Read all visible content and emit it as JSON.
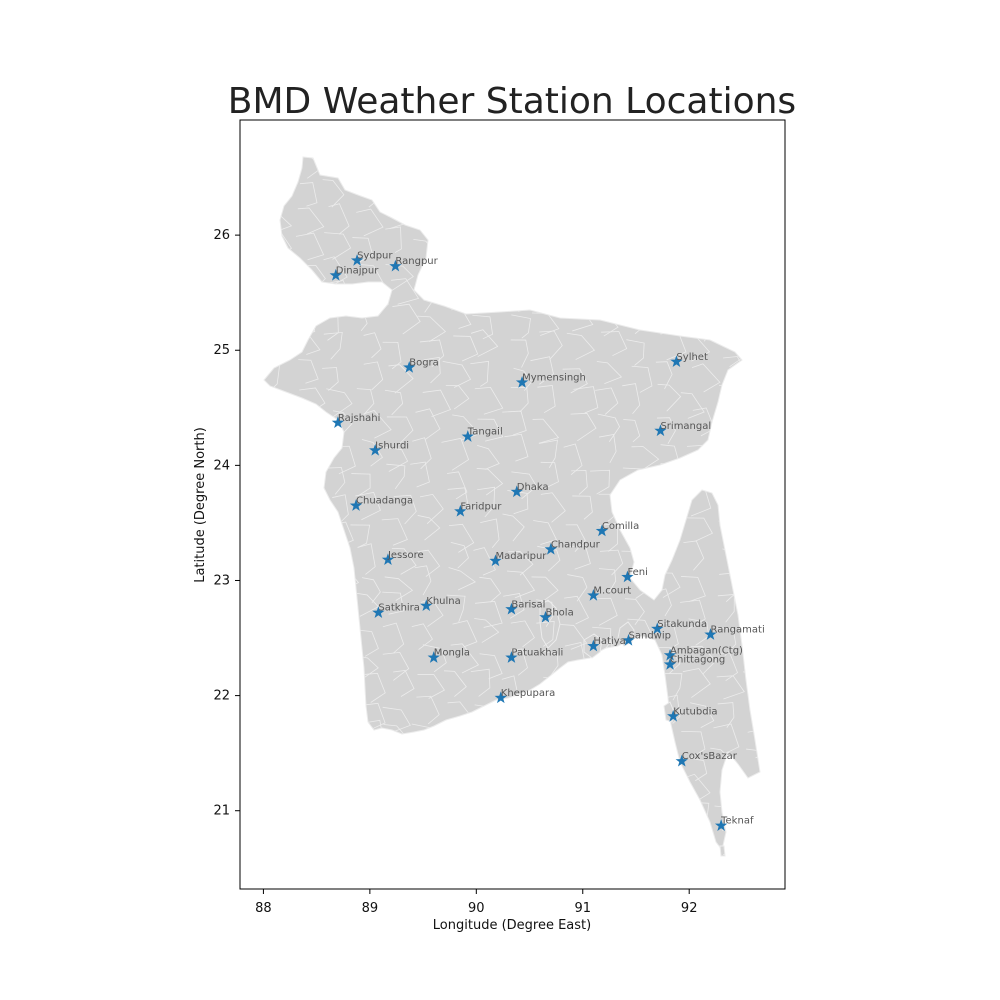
{
  "title": "BMD Weather Station Locations",
  "xlabel": "Longitude (Degree East)",
  "ylabel": "Latitude (Degree North)",
  "colors": {
    "land": "#d3d3d3",
    "border": "#ececec",
    "marker": "#1f77b4",
    "label": "#555555",
    "frame": "#000000"
  },
  "chart_data": {
    "type": "scatter",
    "marker": "star",
    "xlim": [
      87.78,
      92.9
    ],
    "ylim": [
      20.32,
      27.0
    ],
    "xticks": [
      88,
      89,
      90,
      91,
      92
    ],
    "yticks": [
      21,
      22,
      23,
      24,
      25,
      26
    ],
    "stations": [
      {
        "name": "Dinajpur",
        "lon": 88.68,
        "lat": 25.65
      },
      {
        "name": "Sydpur",
        "lon": 88.88,
        "lat": 25.78
      },
      {
        "name": "Rangpur",
        "lon": 89.24,
        "lat": 25.73
      },
      {
        "name": "Bogra",
        "lon": 89.37,
        "lat": 24.85
      },
      {
        "name": "Mymensingh",
        "lon": 90.43,
        "lat": 24.72
      },
      {
        "name": "Sylhet",
        "lon": 91.88,
        "lat": 24.9
      },
      {
        "name": "Rajshahi",
        "lon": 88.7,
        "lat": 24.37
      },
      {
        "name": "Ishurdi",
        "lon": 89.05,
        "lat": 24.13
      },
      {
        "name": "Tangail",
        "lon": 89.92,
        "lat": 24.25
      },
      {
        "name": "Srimangal",
        "lon": 91.73,
        "lat": 24.3
      },
      {
        "name": "Dhaka",
        "lon": 90.38,
        "lat": 23.77
      },
      {
        "name": "Chuadanga",
        "lon": 88.87,
        "lat": 23.65
      },
      {
        "name": "Faridpur",
        "lon": 89.85,
        "lat": 23.6
      },
      {
        "name": "Comilla",
        "lon": 91.18,
        "lat": 23.43
      },
      {
        "name": "Chandpur",
        "lon": 90.7,
        "lat": 23.27
      },
      {
        "name": "Jessore",
        "lon": 89.17,
        "lat": 23.18
      },
      {
        "name": "Madaripur",
        "lon": 90.18,
        "lat": 23.17
      },
      {
        "name": "Feni",
        "lon": 91.42,
        "lat": 23.03
      },
      {
        "name": "M.court",
        "lon": 91.1,
        "lat": 22.87
      },
      {
        "name": "Khulna",
        "lon": 89.53,
        "lat": 22.78
      },
      {
        "name": "Satkhira",
        "lon": 89.08,
        "lat": 22.72
      },
      {
        "name": "Barisal",
        "lon": 90.33,
        "lat": 22.75
      },
      {
        "name": "Bhola",
        "lon": 90.65,
        "lat": 22.68
      },
      {
        "name": "Sitakunda",
        "lon": 91.7,
        "lat": 22.58
      },
      {
        "name": "Rangamati",
        "lon": 92.2,
        "lat": 22.53
      },
      {
        "name": "Sandwip",
        "lon": 91.43,
        "lat": 22.48
      },
      {
        "name": "Hatiya",
        "lon": 91.1,
        "lat": 22.43
      },
      {
        "name": "Ambagan(Ctg)",
        "lon": 91.82,
        "lat": 22.35
      },
      {
        "name": "Chittagong",
        "lon": 91.82,
        "lat": 22.27
      },
      {
        "name": "Mongla",
        "lon": 89.6,
        "lat": 22.33
      },
      {
        "name": "Patuakhali",
        "lon": 90.33,
        "lat": 22.33
      },
      {
        "name": "Khepupara",
        "lon": 90.23,
        "lat": 21.98
      },
      {
        "name": "Kutubdia",
        "lon": 91.85,
        "lat": 21.82
      },
      {
        "name": "Cox'sBazar",
        "lon": 91.93,
        "lat": 21.43
      },
      {
        "name": "Teknaf",
        "lon": 92.3,
        "lat": 20.87
      }
    ]
  }
}
